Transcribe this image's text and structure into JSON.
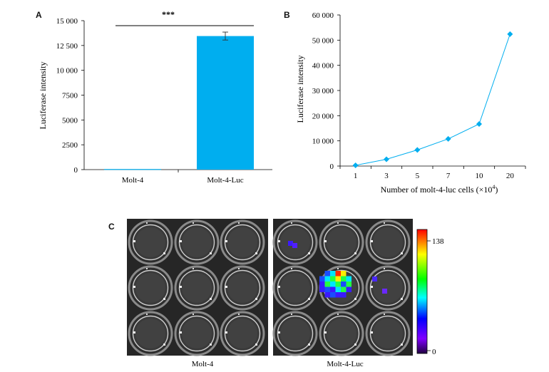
{
  "panels": {
    "a": "A",
    "b": "B",
    "c": "C"
  },
  "chart_data": [
    {
      "type": "bar",
      "categories": [
        "Molt-4",
        "Molt-4-Luc"
      ],
      "values": [
        60,
        13450
      ],
      "errors": [
        0,
        400
      ],
      "ylabel": "Luciferase intensity",
      "xlabel": "",
      "ylim": [
        0,
        15000
      ],
      "yticks": [
        0,
        2500,
        5000,
        7500,
        10000,
        12500,
        15000
      ],
      "ytick_labels": [
        "0",
        "2500",
        "5000",
        "7500",
        "10 000",
        "12 500",
        "15 000"
      ],
      "significance": "***",
      "bar_color": "#00aeef",
      "grid": false
    },
    {
      "type": "line",
      "x": [
        "1",
        "3",
        "5",
        "7",
        "10",
        "20"
      ],
      "values": [
        300,
        2700,
        6400,
        10800,
        16700,
        52400
      ],
      "ylabel": "Luciferase intensity",
      "xlabel": "Number of molt-4-luc cells (×10",
      "xlabel_sup": "4",
      "xlabel_tail": ")",
      "ylim": [
        0,
        60000
      ],
      "yticks": [
        0,
        10000,
        20000,
        30000,
        40000,
        50000,
        60000
      ],
      "ytick_labels": [
        "0",
        "10 000",
        "20 000",
        "30 000",
        "40 000",
        "50 000",
        "60 000"
      ],
      "line_color": "#00aeef",
      "marker": "diamond",
      "grid": false
    }
  ],
  "imaging": {
    "left_label": "Molt-4",
    "right_label": "Molt-4-Luc",
    "colorbar_max": "138",
    "colorbar_min": "0",
    "colorbar_colors": [
      "#ff0000",
      "#ffff00",
      "#00ff00",
      "#00ffff",
      "#0000ff",
      "#8000ff",
      "#200040"
    ]
  }
}
